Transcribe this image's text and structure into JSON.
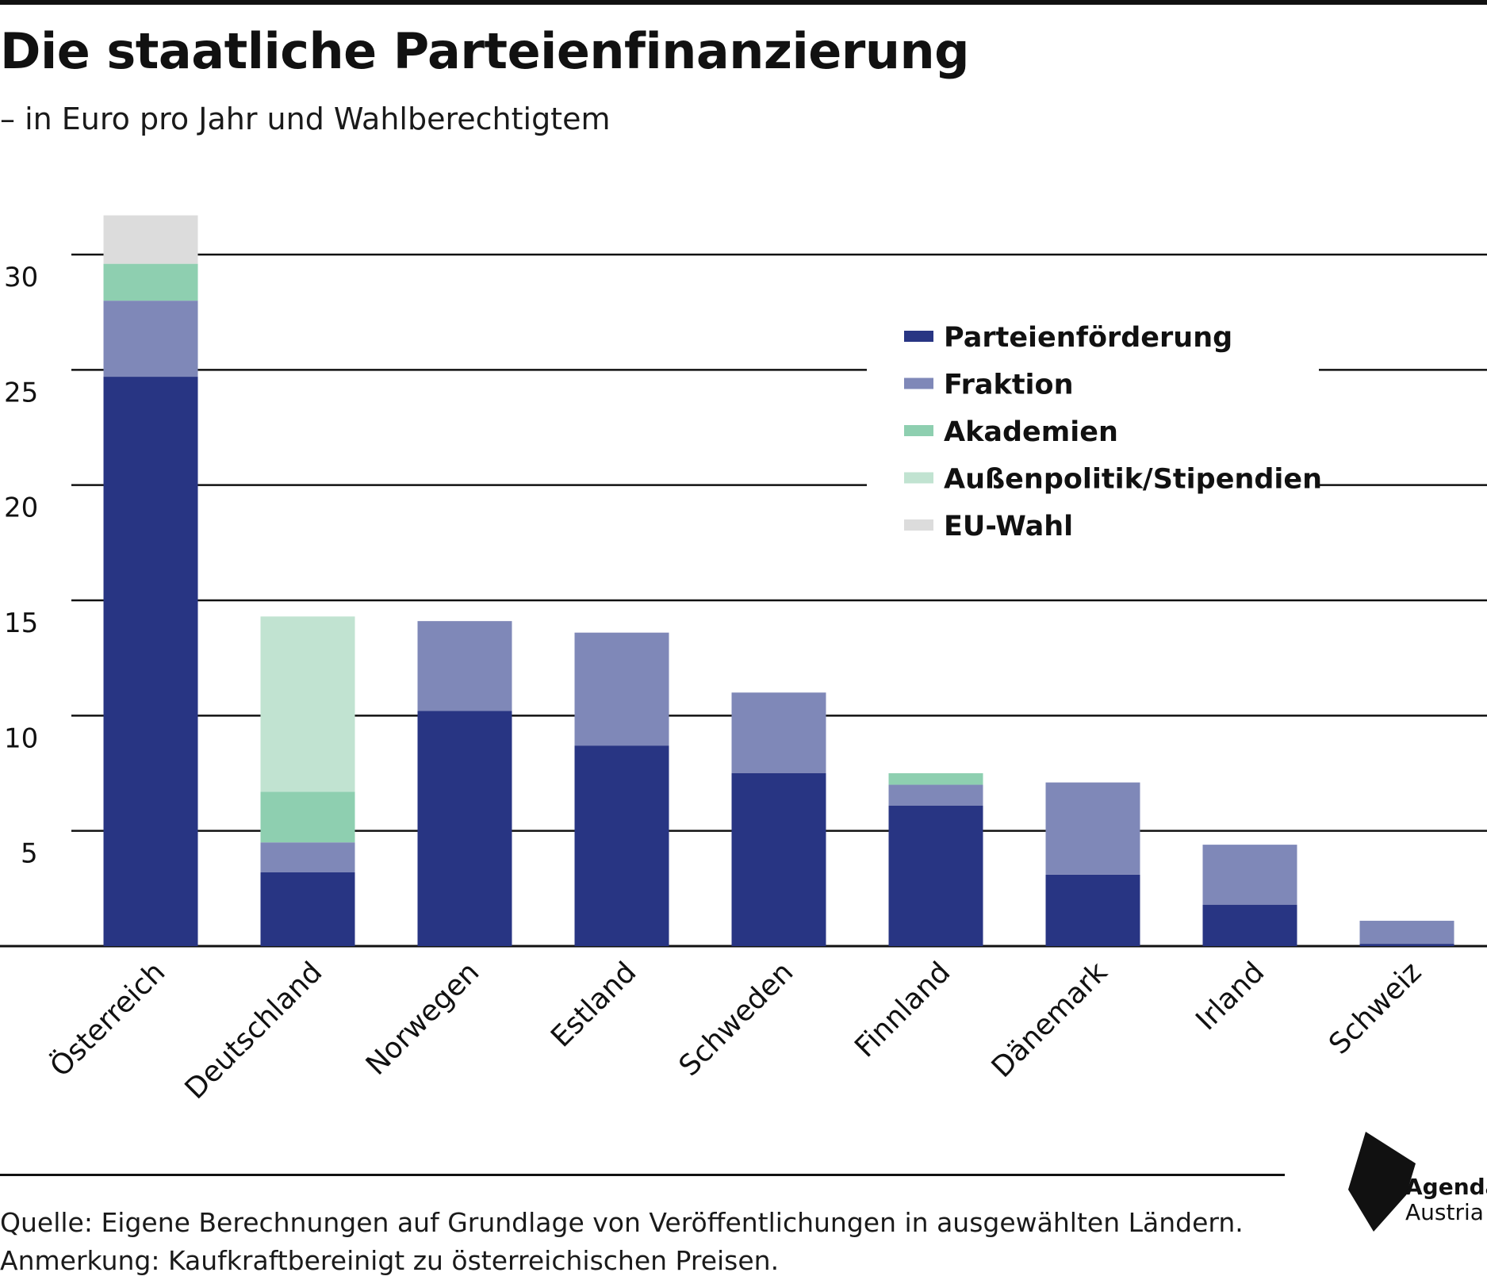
{
  "title": "Die staatliche Parteienfinanzierung",
  "subtitle": "– in Euro pro Jahr und Wahlberechtigtem",
  "notes": {
    "source": "Quelle: Eigene Berechnungen auf Grundlage von Veröffentlichungen in ausgewählten Ländern.",
    "remark": "Anmerkung: Kaufkraftbereinigt zu österreichischen Preisen."
  },
  "logo": {
    "line1": "Agenda",
    "line2": "Austria"
  },
  "chart_data": {
    "type": "bar",
    "stacked": true,
    "categories": [
      "Österreich",
      "Deutschland",
      "Norwegen",
      "Estland",
      "Schweden",
      "Finnland",
      "Dänemark",
      "Irland",
      "Schweiz"
    ],
    "series": [
      {
        "name": "Parteienförderung",
        "color": "#283583",
        "values": [
          24.7,
          3.2,
          10.2,
          8.7,
          7.5,
          6.1,
          3.1,
          1.8,
          0.1
        ]
      },
      {
        "name": "Fraktion",
        "color": "#7f88b8",
        "values": [
          3.3,
          1.3,
          3.9,
          4.9,
          3.5,
          0.9,
          4.0,
          2.6,
          1.0
        ]
      },
      {
        "name": "Akademien",
        "color": "#8ecfb0",
        "values": [
          1.6,
          2.2,
          0,
          0,
          0,
          0.5,
          0,
          0,
          0
        ]
      },
      {
        "name": "Außenpolitik/Stipendien",
        "color": "#c1e3d1",
        "values": [
          0,
          7.6,
          0,
          0,
          0,
          0,
          0,
          0,
          0
        ]
      },
      {
        "name": "EU-Wahl",
        "color": "#dcdcdc",
        "values": [
          2.1,
          0,
          0,
          0,
          0,
          0,
          0,
          0,
          0
        ]
      }
    ],
    "yticks": [
      5,
      10,
      15,
      20,
      25,
      30
    ],
    "ylim": [
      0,
      30
    ],
    "grid": true,
    "legend_position": "top-right",
    "xlabel": "",
    "ylabel": ""
  }
}
